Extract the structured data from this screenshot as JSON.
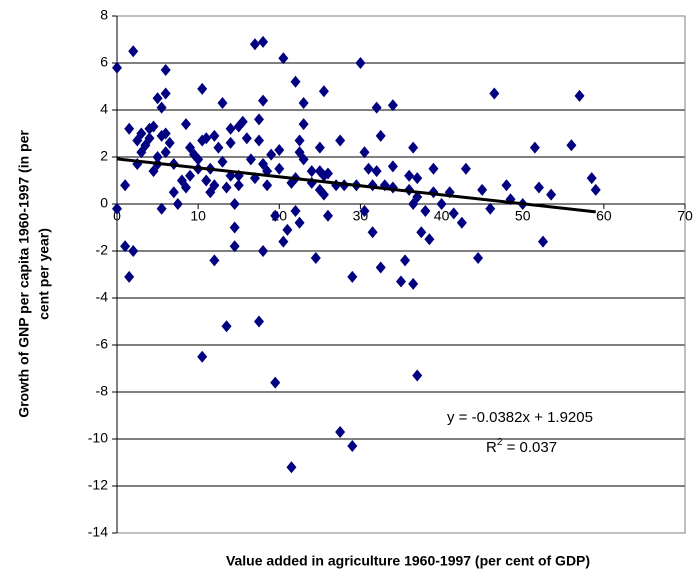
{
  "chart_data": {
    "type": "scatter",
    "x_label": "Value added in agriculture 1960-1997 (per cent of GDP)",
    "y_label": [
      "Growth of GNP per capita 1960-1997 (in per",
      "cent per year)"
    ],
    "color": "#000080",
    "grid": true,
    "xlim": [
      0,
      70
    ],
    "xticks": [
      0,
      10,
      20,
      30,
      40,
      50,
      60,
      70
    ],
    "ylim": [
      -14,
      8
    ],
    "yticks": [
      -14,
      -12,
      -10,
      -8,
      -6,
      -4,
      -2,
      0,
      2,
      4,
      6,
      8
    ],
    "x": [
      0,
      0,
      1,
      1,
      1.5,
      2,
      1.5,
      2,
      2.5,
      2.5,
      3,
      3,
      3.5,
      4,
      4,
      4.5,
      4.5,
      5,
      5,
      5,
      5.5,
      5.5,
      5.5,
      6,
      6,
      6,
      6,
      6.5,
      7,
      7,
      7.5,
      8,
      8.5,
      8.5,
      9,
      9,
      9.5,
      10,
      10,
      10.5,
      10.5,
      10.5,
      11,
      11,
      11.5,
      11.5,
      12,
      12,
      12,
      12.5,
      13,
      13,
      13.5,
      13.5,
      14,
      14,
      14,
      14.5,
      14.5,
      14.5,
      15,
      15,
      15,
      15.5,
      16,
      16.5,
      17,
      17,
      17.5,
      17.5,
      17.5,
      18,
      18,
      18,
      18,
      18.5,
      18.5,
      19,
      19.5,
      19.5,
      20,
      20,
      20.5,
      20.5,
      21,
      21.5,
      21.5,
      22,
      22,
      22,
      22.5,
      22.5,
      22.5,
      23,
      23,
      23,
      24,
      24,
      24.5,
      25,
      25,
      25,
      25.5,
      25.5,
      25.5,
      26,
      26,
      27,
      27.5,
      27.5,
      28,
      29,
      29,
      29.5,
      30,
      30.5,
      30.5,
      31,
      31.5,
      31.5,
      32,
      32,
      32.5,
      32.5,
      33,
      34,
      34,
      34,
      35,
      35.5,
      36,
      36,
      36.5,
      36.5,
      36.5,
      37,
      37,
      37,
      37.5,
      38,
      38.5,
      39,
      39,
      40,
      41,
      41.5,
      42.5,
      43,
      44.5,
      45,
      46,
      46.5,
      48,
      48.5,
      50,
      51.5,
      52,
      52.5,
      53.5,
      56,
      57,
      58.5,
      59
    ],
    "values": [
      5.8,
      -0.2,
      0.8,
      -1.8,
      -3.1,
      6.5,
      3.2,
      -2,
      2.7,
      1.7,
      2.2,
      3,
      2.5,
      3.2,
      2.8,
      1.4,
      3.3,
      2,
      1.7,
      4.5,
      2.9,
      4.1,
      -0.2,
      5.7,
      4.7,
      3,
      2.2,
      2.6,
      0.5,
      1.7,
      0,
      1,
      3.4,
      0.7,
      2.4,
      1.2,
      2.1,
      1.9,
      1.5,
      2.7,
      4.9,
      -6.5,
      1,
      2.8,
      0.5,
      1.5,
      2.9,
      0.8,
      -2.4,
      2.4,
      4.3,
      1.8,
      -5.2,
      0.7,
      1.2,
      2.6,
      3.2,
      -1.8,
      0,
      -1,
      1.2,
      0.8,
      3.3,
      3.5,
      2.8,
      1.9,
      1.1,
      6.8,
      3.6,
      2.7,
      -5,
      6.9,
      1.7,
      4.4,
      -2,
      0.8,
      1.4,
      2.1,
      -0.5,
      -7.6,
      1.5,
      2.3,
      -1.6,
      6.2,
      -1.1,
      0.9,
      -11.2,
      5.2,
      1.1,
      -0.3,
      2.7,
      2.2,
      -0.8,
      3.4,
      1.9,
      4.3,
      1.4,
      0.9,
      -2.3,
      2.4,
      1.4,
      0.6,
      4.8,
      1.2,
      0.4,
      -0.5,
      1.3,
      0.8,
      2.7,
      -9.7,
      0.8,
      -10.3,
      -3.1,
      0.8,
      6,
      2.2,
      -0.3,
      1.5,
      -1.2,
      0.8,
      4.1,
      1.4,
      2.9,
      -2.7,
      0.8,
      4.2,
      1.6,
      0.7,
      -3.3,
      -2.4,
      0.6,
      1.2,
      -3.4,
      2.4,
      0,
      -7.3,
      1.1,
      0.3,
      -1.2,
      -0.3,
      -1.5,
      1.5,
      0.5,
      0,
      0.5,
      -0.4,
      -0.8,
      1.5,
      -2.3,
      0.6,
      -0.2,
      4.7,
      0.8,
      0.2,
      0,
      2.4,
      0.7,
      -1.6,
      0.4,
      2.5,
      4.6,
      1.1,
      0.6
    ],
    "trendline": {
      "slope": -0.0382,
      "intercept": 1.9205,
      "color": "#000000",
      "equation_label": "y = -0.0382x + 1.9205",
      "r2_label": {
        "base": "R",
        "sup": "2",
        "rest": " = 0.037"
      }
    }
  }
}
